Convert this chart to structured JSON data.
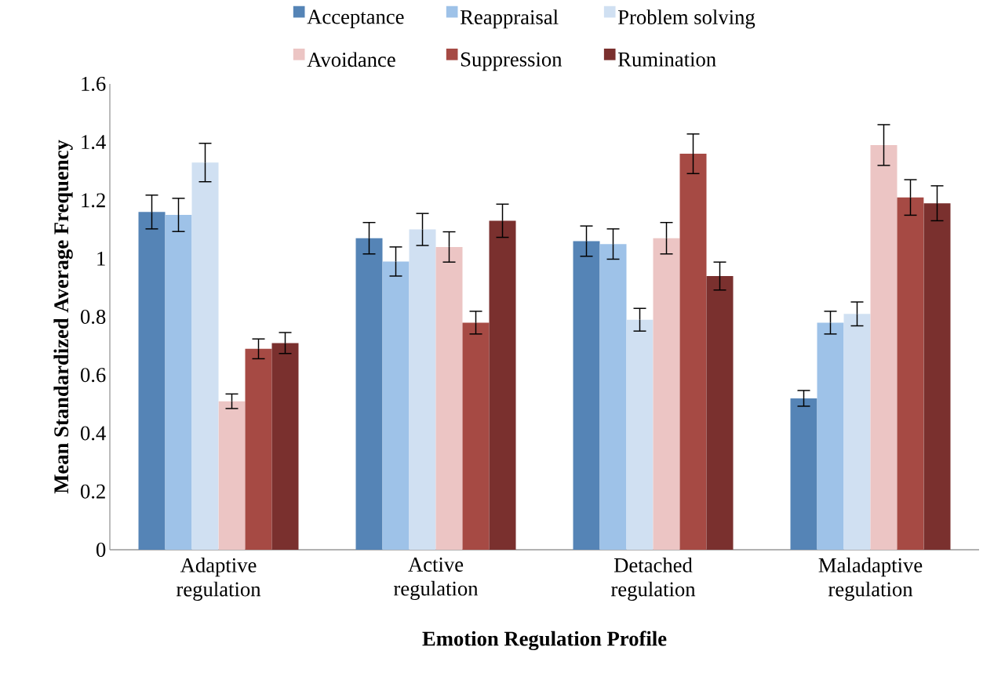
{
  "chart_data": {
    "type": "bar",
    "xlabel": "Emotion Regulation Profile",
    "ylabel": "Mean Standardized Average Frequency",
    "categories": [
      "Adaptive regulation",
      "Active regulation",
      "Detached regulation",
      "Maladaptive regulation"
    ],
    "series": [
      {
        "name": "Acceptance",
        "color": "#5584b6",
        "values": [
          1.16,
          1.07,
          1.06,
          0.52
        ],
        "errors": [
          0.058,
          0.054,
          0.052,
          0.027
        ]
      },
      {
        "name": "Reappraisal",
        "color": "#9ec2e8",
        "values": [
          1.15,
          0.99,
          1.05,
          0.78
        ],
        "errors": [
          0.057,
          0.05,
          0.052,
          0.039
        ]
      },
      {
        "name": "Problem solving",
        "color": "#d0e0f2",
        "values": [
          1.33,
          1.1,
          0.79,
          0.81
        ],
        "errors": [
          0.066,
          0.055,
          0.039,
          0.041
        ]
      },
      {
        "name": "Avoidance",
        "color": "#ecc5c4",
        "values": [
          0.51,
          1.04,
          1.07,
          1.39
        ],
        "errors": [
          0.025,
          0.052,
          0.054,
          0.07
        ]
      },
      {
        "name": "Suppression",
        "color": "#a64a44",
        "values": [
          0.69,
          0.78,
          1.36,
          1.21
        ],
        "errors": [
          0.034,
          0.039,
          0.068,
          0.061
        ]
      },
      {
        "name": "Rumination",
        "color": "#7a302e",
        "values": [
          0.71,
          1.13,
          0.94,
          1.19
        ],
        "errors": [
          0.036,
          0.057,
          0.048,
          0.06
        ]
      }
    ],
    "ylim": [
      0,
      1.6
    ],
    "yticks": [
      0,
      0.2,
      0.4,
      0.6,
      0.8,
      1,
      1.2,
      1.4,
      1.6
    ],
    "legend": "top"
  }
}
